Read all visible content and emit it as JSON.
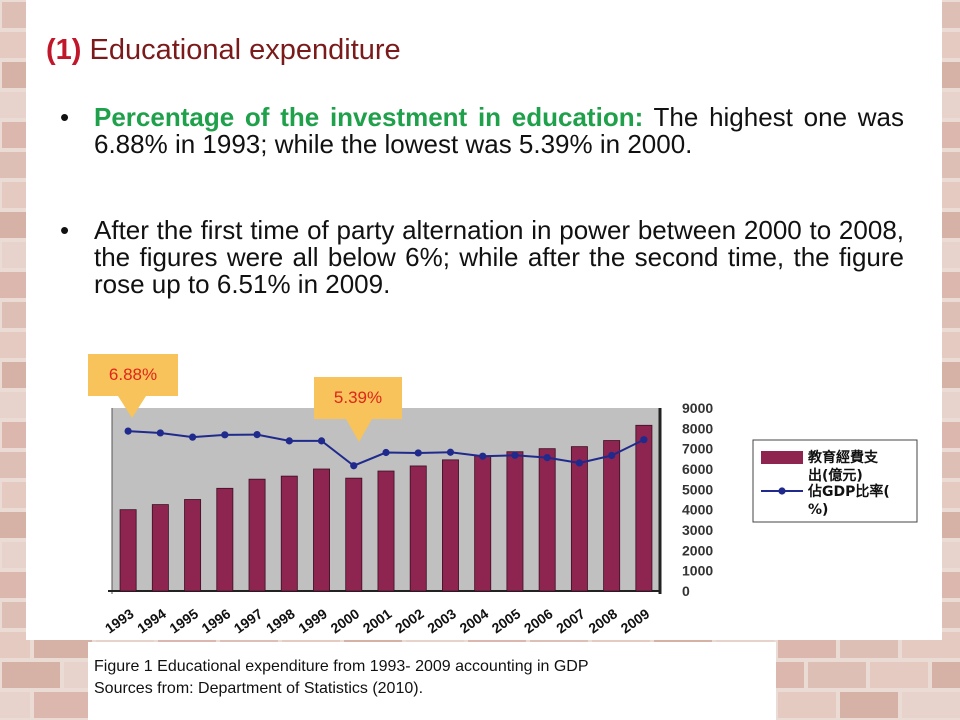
{
  "title": {
    "number": "(1)",
    "text": "Educational expenditure"
  },
  "bullets": [
    {
      "highlight": "Percentage of the investment in education:",
      "text": " The highest one was 6.88% in 1993; while the lowest was 5.39% in 2000."
    },
    {
      "highlight": "",
      "text": "After the first time of party alternation in power between 2000 to 2008, the figures were all below 6%; while after the second time, the figure rose up to 6.51% in 2009."
    }
  ],
  "callouts": {
    "high": "6.88%",
    "low": "5.39%"
  },
  "caption": {
    "line1": "Figure 1 Educational expenditure from 1993- 2009 accounting in GDP",
    "line2": "Sources from: Department of Statistics (2010)."
  },
  "colors": {
    "bar": "#8e2450",
    "line": "#1f2a8c",
    "plot_bg": "#c0c0c0",
    "title": "#7a1a1a",
    "highlight": "#1fa04a",
    "callout_bg": "#f7c35a",
    "callout_text": "#e0261b"
  },
  "chart_data": {
    "type": "bar",
    "categories": [
      "1993",
      "1994",
      "1995",
      "1996",
      "1997",
      "1998",
      "1999",
      "2000",
      "2001",
      "2002",
      "2003",
      "2004",
      "2005",
      "2006",
      "2007",
      "2008",
      "2009"
    ],
    "y_ticks": [
      "9000",
      "8000",
      "7000",
      "6000",
      "5000",
      "4000",
      "3000",
      "2000",
      "1000",
      "0"
    ],
    "ylim": [
      0,
      9000
    ],
    "grid": false,
    "legend_position": "right",
    "series": [
      {
        "name": "教育經費支出(億元)",
        "type": "bar",
        "values": [
          4000,
          4250,
          4500,
          5050,
          5500,
          5650,
          6000,
          5550,
          5900,
          6150,
          6450,
          6650,
          6850,
          7000,
          7100,
          7400,
          8150
        ]
      },
      {
        "name": "佔GDP比率(%)",
        "type": "line",
        "values": [
          6.88,
          6.8,
          6.62,
          6.72,
          6.73,
          6.46,
          6.46,
          5.39,
          5.96,
          5.94,
          5.97,
          5.8,
          5.84,
          5.74,
          5.51,
          5.83,
          6.51
        ]
      }
    ]
  }
}
